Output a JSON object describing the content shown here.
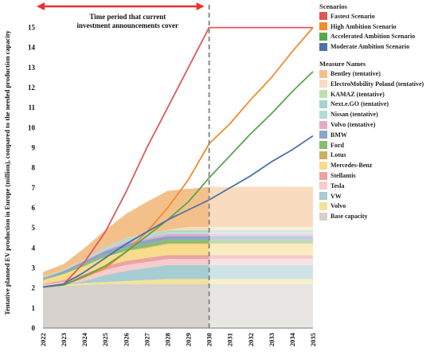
{
  "chart_data": {
    "type": "area",
    "ylabel": "Tentative planned EV production in Europe (million), compared to the needed production capacity",
    "ylim": [
      0,
      15.5
    ],
    "yticks": [
      0,
      1,
      2,
      3,
      4,
      5,
      6,
      7,
      8,
      9,
      10,
      11,
      12,
      13,
      14,
      15
    ],
    "x": [
      "2022",
      "2023",
      "2024",
      "2025",
      "2026",
      "2027",
      "2028",
      "2029",
      "2030",
      "2031",
      "2032",
      "2033",
      "2034",
      "2035"
    ],
    "annotation": "Time period that current investment announcements cover",
    "divider_x": "2030",
    "stacked_series": [
      {
        "name": "Base capacity",
        "color": "#d6d1cc",
        "values": [
          2.05,
          2.1,
          2.15,
          2.2,
          2.2,
          2.2,
          2.2,
          2.2,
          2.2,
          2.2,
          2.2,
          2.2,
          2.2,
          2.2
        ]
      },
      {
        "name": "Volvo",
        "color": "#f3e39a",
        "values": [
          0,
          0.05,
          0.1,
          0.1,
          0.15,
          0.2,
          0.25,
          0.25,
          0.25,
          0.25,
          0.25,
          0.25,
          0.25,
          0.25
        ]
      },
      {
        "name": "VW",
        "color": "#a6cdd1",
        "values": [
          0,
          0,
          0.1,
          0.35,
          0.5,
          0.6,
          0.7,
          0.7,
          0.7,
          0.7,
          0.7,
          0.7,
          0.7,
          0.7
        ]
      },
      {
        "name": "Tesla",
        "color": "#f6cccc",
        "values": [
          0.1,
          0.15,
          0.2,
          0.25,
          0.3,
          0.3,
          0.3,
          0.3,
          0.3,
          0.3,
          0.3,
          0.3,
          0.3,
          0.3
        ]
      },
      {
        "name": "Stellantis",
        "color": "#eba3a3",
        "values": [
          0.05,
          0.1,
          0.15,
          0.2,
          0.2,
          0.2,
          0.2,
          0.2,
          0.2,
          0.2,
          0.2,
          0.2,
          0.2,
          0.2
        ]
      },
      {
        "name": "Mercedes-Benz",
        "color": "#f7dc8c",
        "values": [
          0.2,
          0.3,
          0.4,
          0.45,
          0.5,
          0.5,
          0.55,
          0.55,
          0.55,
          0.55,
          0.55,
          0.55,
          0.55,
          0.55
        ]
      },
      {
        "name": "Lotus",
        "color": "#c8b262",
        "values": [
          0,
          0,
          0,
          0,
          0,
          0.05,
          0.05,
          0.05,
          0.05,
          0.05,
          0.05,
          0.05,
          0.05,
          0.05
        ]
      },
      {
        "name": "Ford",
        "color": "#86bd6f",
        "values": [
          0.05,
          0.05,
          0.1,
          0.1,
          0.15,
          0.15,
          0.15,
          0.15,
          0.15,
          0.15,
          0.15,
          0.15,
          0.15,
          0.15
        ]
      },
      {
        "name": "BMW",
        "color": "#8da4c6",
        "values": [
          0.05,
          0.1,
          0.15,
          0.2,
          0.2,
          0.2,
          0.2,
          0.2,
          0.2,
          0.2,
          0.2,
          0.2,
          0.2,
          0.2
        ]
      },
      {
        "name": "Volvo (tentative)",
        "color": "#e7abc9",
        "values": [
          0,
          0,
          0.05,
          0.05,
          0.1,
          0.1,
          0.1,
          0.1,
          0.1,
          0.1,
          0.1,
          0.1,
          0.1,
          0.1
        ]
      },
      {
        "name": "Nissan (tentative)",
        "color": "#b7dad6",
        "values": [
          0.05,
          0.05,
          0.05,
          0.1,
          0.1,
          0.1,
          0.1,
          0.1,
          0.1,
          0.1,
          0.1,
          0.1,
          0.1,
          0.1
        ]
      },
      {
        "name": "Next.e.GO (tentative)",
        "color": "#a9d1cf",
        "values": [
          0,
          0,
          0,
          0.05,
          0.05,
          0.05,
          0.05,
          0.05,
          0.05,
          0.05,
          0.05,
          0.05,
          0.05,
          0.05
        ]
      },
      {
        "name": "KAMAZ (tentative)",
        "color": "#bfe0ae",
        "values": [
          0,
          0,
          0,
          0,
          0.05,
          0.05,
          0.05,
          0.05,
          0.05,
          0.05,
          0.05,
          0.05,
          0.05,
          0.05
        ]
      },
      {
        "name": "ElectroMobility Poland (tentative)",
        "color": "#f7dcc0",
        "values": [
          0,
          0,
          0,
          0,
          0,
          0,
          0,
          0.15,
          0.15,
          0.15,
          0.15,
          0.15,
          0.15,
          0.15
        ]
      },
      {
        "name": "Bentley (tentative)",
        "color": "#f4c08a",
        "values": [
          0.25,
          0.3,
          0.55,
          0.85,
          1.2,
          1.6,
          1.95,
          1.9,
          2.0,
          2.0,
          2.0,
          2.0,
          2.0,
          2.0
        ]
      }
    ],
    "scenario_series": [
      {
        "name": "Fastest Scenario",
        "color": "#dc5a5a",
        "points": [
          [
            "2022",
            2.05
          ],
          [
            "2023",
            2.2
          ],
          [
            "2024",
            3.3
          ],
          [
            "2025",
            4.8
          ],
          [
            "2026",
            6.8
          ],
          [
            "2027",
            9.0
          ],
          [
            "2028",
            11.0
          ],
          [
            "2029",
            13.0
          ],
          [
            "2030",
            15.0
          ],
          [
            "2035",
            15.0
          ]
        ]
      },
      {
        "name": "High Ambition Scenario",
        "color": "#ee8c2e",
        "points": [
          [
            "2022",
            2.05
          ],
          [
            "2023",
            2.15
          ],
          [
            "2024",
            2.55
          ],
          [
            "2025",
            3.0
          ],
          [
            "2026",
            3.8
          ],
          [
            "2027",
            4.8
          ],
          [
            "2028",
            6.0
          ],
          [
            "2029",
            7.4
          ],
          [
            "2030",
            9.2
          ],
          [
            "2031",
            10.2
          ],
          [
            "2032",
            11.4
          ],
          [
            "2033",
            12.5
          ],
          [
            "2034",
            13.8
          ],
          [
            "2035",
            15.0
          ]
        ]
      },
      {
        "name": "Accelerated Ambition Scenario",
        "color": "#5aa54e",
        "points": [
          [
            "2022",
            2.05
          ],
          [
            "2023",
            2.15
          ],
          [
            "2024",
            2.6
          ],
          [
            "2025",
            3.1
          ],
          [
            "2026",
            3.8
          ],
          [
            "2027",
            4.6
          ],
          [
            "2028",
            5.4
          ],
          [
            "2029",
            6.3
          ],
          [
            "2030",
            7.5
          ],
          [
            "2031",
            8.6
          ],
          [
            "2032",
            9.7
          ],
          [
            "2033",
            10.7
          ],
          [
            "2034",
            11.8
          ],
          [
            "2035",
            12.8
          ]
        ]
      },
      {
        "name": "Moderate Ambition Scenario",
        "color": "#4b73a6",
        "points": [
          [
            "2022",
            2.05
          ],
          [
            "2023",
            2.2
          ],
          [
            "2024",
            2.8
          ],
          [
            "2025",
            3.5
          ],
          [
            "2026",
            4.2
          ],
          [
            "2027",
            4.8
          ],
          [
            "2028",
            5.4
          ],
          [
            "2029",
            5.9
          ],
          [
            "2030",
            6.4
          ],
          [
            "2031",
            7.0
          ],
          [
            "2032",
            7.6
          ],
          [
            "2033",
            8.3
          ],
          [
            "2034",
            8.9
          ],
          [
            "2035",
            9.6
          ]
        ]
      }
    ]
  },
  "legend": {
    "scenarios_title": "Scenarios",
    "scenarios": [
      {
        "label": "Fastest Scenario",
        "color": "#dc5a5a"
      },
      {
        "label": "High Ambition Scenario",
        "color": "#ee8c2e"
      },
      {
        "label": "Accelerated Ambition Scenario",
        "color": "#5aa54e"
      },
      {
        "label": "Moderate Ambition Scenario",
        "color": "#4b73a6"
      }
    ],
    "measures_title": "Measure Names",
    "measures": [
      {
        "label": "Bentley (tentative)",
        "color": "#f4c08a"
      },
      {
        "label": "ElectroMobility Poland (tentative)",
        "color": "#f7dcc0"
      },
      {
        "label": "KAMAZ (tentative)",
        "color": "#bfe0ae"
      },
      {
        "label": "Next.e.GO (tentative)",
        "color": "#a9d1cf"
      },
      {
        "label": "Nissan (tentative)",
        "color": "#b7dad6"
      },
      {
        "label": "Volvo (tentative)",
        "color": "#e7abc9"
      },
      {
        "label": "BMW",
        "color": "#8da4c6"
      },
      {
        "label": "Ford",
        "color": "#86bd6f"
      },
      {
        "label": "Lotus",
        "color": "#c8b262"
      },
      {
        "label": "Mercedes-Benz",
        "color": "#f7dc8c"
      },
      {
        "label": "Stellantis",
        "color": "#eba3a3"
      },
      {
        "label": "Tesla",
        "color": "#f6cccc"
      },
      {
        "label": "VW",
        "color": "#a6cdd1"
      },
      {
        "label": "Volvo",
        "color": "#f3e39a"
      },
      {
        "label": "Base capacity",
        "color": "#d6d1cc"
      }
    ]
  }
}
